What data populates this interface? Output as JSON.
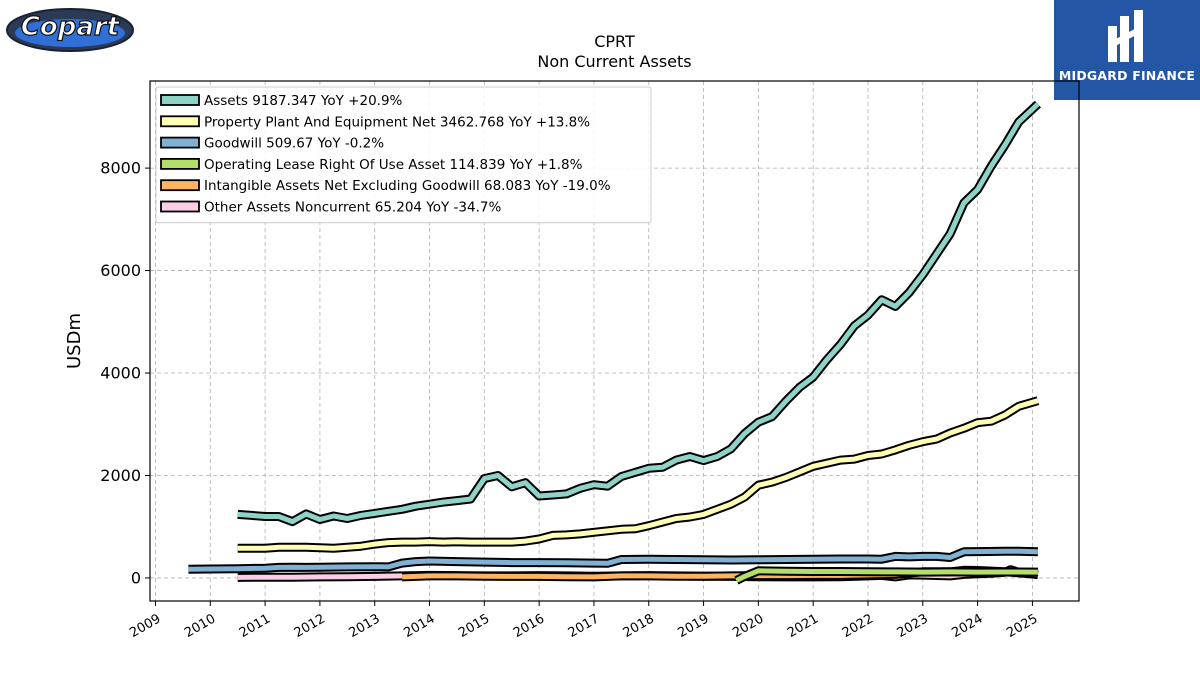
{
  "brand_left": {
    "text": "Copart"
  },
  "brand_right": {
    "text": "MIDGARD FINANCE"
  },
  "chart_data": {
    "type": "line",
    "title": "CPRT",
    "subtitle": "Non Current  Assets",
    "ylabel": "USDm",
    "xlabel": "",
    "xlim": [
      2008.9,
      2025.85
    ],
    "ylim": [
      -450,
      9700
    ],
    "yticks": [
      0,
      2000,
      4000,
      6000,
      8000
    ],
    "xticks": [
      2009,
      2010,
      2011,
      2012,
      2013,
      2014,
      2015,
      2016,
      2017,
      2018,
      2019,
      2020,
      2021,
      2022,
      2023,
      2024,
      2025
    ],
    "grid": true,
    "legend_position": "top-left",
    "series": [
      {
        "name": "Assets",
        "legend": "Assets  9187.347 YoY +20.9%",
        "color": "#8dd3c7",
        "points": [
          [
            2010.5,
            1240
          ],
          [
            2010.75,
            1220
          ],
          [
            2011.0,
            1200
          ],
          [
            2011.25,
            1200
          ],
          [
            2011.5,
            1100
          ],
          [
            2011.75,
            1250
          ],
          [
            2012.0,
            1140
          ],
          [
            2012.25,
            1210
          ],
          [
            2012.5,
            1160
          ],
          [
            2012.75,
            1220
          ],
          [
            2013.0,
            1260
          ],
          [
            2013.25,
            1300
          ],
          [
            2013.5,
            1340
          ],
          [
            2013.75,
            1400
          ],
          [
            2014.0,
            1440
          ],
          [
            2014.25,
            1480
          ],
          [
            2014.5,
            1510
          ],
          [
            2014.75,
            1540
          ],
          [
            2015.0,
            1940
          ],
          [
            2015.25,
            2000
          ],
          [
            2015.5,
            1780
          ],
          [
            2015.75,
            1860
          ],
          [
            2016.0,
            1600
          ],
          [
            2016.25,
            1620
          ],
          [
            2016.5,
            1640
          ],
          [
            2016.75,
            1750
          ],
          [
            2017.0,
            1820
          ],
          [
            2017.25,
            1790
          ],
          [
            2017.5,
            1980
          ],
          [
            2017.75,
            2060
          ],
          [
            2018.0,
            2140
          ],
          [
            2018.25,
            2160
          ],
          [
            2018.5,
            2300
          ],
          [
            2018.75,
            2370
          ],
          [
            2019.0,
            2290
          ],
          [
            2019.25,
            2370
          ],
          [
            2019.5,
            2520
          ],
          [
            2019.75,
            2820
          ],
          [
            2020.0,
            3040
          ],
          [
            2020.25,
            3150
          ],
          [
            2020.5,
            3450
          ],
          [
            2020.75,
            3720
          ],
          [
            2021.0,
            3920
          ],
          [
            2021.25,
            4260
          ],
          [
            2021.5,
            4560
          ],
          [
            2021.75,
            4920
          ],
          [
            2022.0,
            5130
          ],
          [
            2022.25,
            5430
          ],
          [
            2022.5,
            5300
          ],
          [
            2022.75,
            5570
          ],
          [
            2023.0,
            5920
          ],
          [
            2023.25,
            6320
          ],
          [
            2023.5,
            6720
          ],
          [
            2023.75,
            7320
          ],
          [
            2024.0,
            7580
          ],
          [
            2024.25,
            8040
          ],
          [
            2024.5,
            8450
          ],
          [
            2024.75,
            8900
          ],
          [
            2025.1,
            9250
          ]
        ]
      },
      {
        "name": "Property Plant And Equipment Net",
        "legend": "Property Plant And Equipment Net  3462.768 YoY +13.8%",
        "color": "#ffffb3",
        "points": [
          [
            2010.5,
            580
          ],
          [
            2010.75,
            580
          ],
          [
            2011.0,
            580
          ],
          [
            2011.25,
            600
          ],
          [
            2011.5,
            600
          ],
          [
            2011.75,
            600
          ],
          [
            2012.0,
            590
          ],
          [
            2012.25,
            580
          ],
          [
            2012.5,
            600
          ],
          [
            2012.75,
            620
          ],
          [
            2013.0,
            660
          ],
          [
            2013.25,
            690
          ],
          [
            2013.5,
            700
          ],
          [
            2013.75,
            700
          ],
          [
            2014.0,
            710
          ],
          [
            2014.25,
            700
          ],
          [
            2014.5,
            705
          ],
          [
            2014.75,
            700
          ],
          [
            2015.0,
            700
          ],
          [
            2015.25,
            700
          ],
          [
            2015.5,
            700
          ],
          [
            2015.75,
            720
          ],
          [
            2016.0,
            760
          ],
          [
            2016.25,
            830
          ],
          [
            2016.5,
            840
          ],
          [
            2016.75,
            860
          ],
          [
            2017.0,
            890
          ],
          [
            2017.25,
            920
          ],
          [
            2017.5,
            950
          ],
          [
            2017.75,
            960
          ],
          [
            2018.0,
            1020
          ],
          [
            2018.25,
            1090
          ],
          [
            2018.5,
            1160
          ],
          [
            2018.75,
            1190
          ],
          [
            2019.0,
            1240
          ],
          [
            2019.25,
            1340
          ],
          [
            2019.5,
            1440
          ],
          [
            2019.75,
            1580
          ],
          [
            2020.0,
            1810
          ],
          [
            2020.25,
            1870
          ],
          [
            2020.5,
            1960
          ],
          [
            2020.75,
            2070
          ],
          [
            2021.0,
            2180
          ],
          [
            2021.25,
            2240
          ],
          [
            2021.5,
            2300
          ],
          [
            2021.75,
            2320
          ],
          [
            2022.0,
            2390
          ],
          [
            2022.25,
            2420
          ],
          [
            2022.5,
            2500
          ],
          [
            2022.75,
            2590
          ],
          [
            2023.0,
            2660
          ],
          [
            2023.25,
            2710
          ],
          [
            2023.5,
            2830
          ],
          [
            2023.75,
            2920
          ],
          [
            2024.0,
            3030
          ],
          [
            2024.25,
            3060
          ],
          [
            2024.5,
            3180
          ],
          [
            2024.75,
            3350
          ],
          [
            2025.1,
            3460
          ]
        ]
      },
      {
        "name": "Goodwill",
        "legend": "Goodwill  509.67 YoY -0.2%",
        "color": "#80b1d3",
        "points": [
          [
            2009.6,
            170
          ],
          [
            2010.0,
            175
          ],
          [
            2010.5,
            180
          ],
          [
            2011.0,
            190
          ],
          [
            2011.25,
            205
          ],
          [
            2011.5,
            210
          ],
          [
            2011.75,
            205
          ],
          [
            2012.0,
            210
          ],
          [
            2012.5,
            215
          ],
          [
            2013.0,
            220
          ],
          [
            2013.25,
            215
          ],
          [
            2013.5,
            290
          ],
          [
            2013.75,
            320
          ],
          [
            2014.0,
            330
          ],
          [
            2014.5,
            320
          ],
          [
            2015.0,
            310
          ],
          [
            2015.5,
            300
          ],
          [
            2016.0,
            300
          ],
          [
            2016.5,
            295
          ],
          [
            2017.0,
            290
          ],
          [
            2017.25,
            285
          ],
          [
            2017.5,
            360
          ],
          [
            2018.0,
            365
          ],
          [
            2018.5,
            360
          ],
          [
            2019.0,
            355
          ],
          [
            2019.5,
            350
          ],
          [
            2020.0,
            355
          ],
          [
            2020.5,
            360
          ],
          [
            2021.0,
            365
          ],
          [
            2021.5,
            370
          ],
          [
            2022.0,
            370
          ],
          [
            2022.25,
            365
          ],
          [
            2022.5,
            420
          ],
          [
            2022.75,
            410
          ],
          [
            2023.0,
            420
          ],
          [
            2023.25,
            420
          ],
          [
            2023.5,
            400
          ],
          [
            2023.75,
            510
          ],
          [
            2024.0,
            515
          ],
          [
            2024.5,
            520
          ],
          [
            2024.75,
            520
          ],
          [
            2025.1,
            510
          ]
        ]
      },
      {
        "name": "Operating Lease Right Of Use Asset",
        "legend": "Operating Lease Right Of Use Asset  114.839 YoY +1.8%",
        "color": "#b3de69",
        "points": [
          [
            2019.6,
            -50
          ],
          [
            2019.75,
            30
          ],
          [
            2020.0,
            140
          ],
          [
            2020.5,
            130
          ],
          [
            2021.0,
            125
          ],
          [
            2021.5,
            125
          ],
          [
            2022.0,
            120
          ],
          [
            2022.5,
            118
          ],
          [
            2023.0,
            115
          ],
          [
            2023.5,
            118
          ],
          [
            2024.0,
            115
          ],
          [
            2024.5,
            116
          ],
          [
            2025.1,
            115
          ]
        ]
      },
      {
        "name": "Intangible Assets Net Excluding Goodwill",
        "legend": "Intangible Assets Net Excluding Goodwill  68.083 YoY -19.0%",
        "color": "#fdb462",
        "points": [
          [
            2013.5,
            20
          ],
          [
            2014.0,
            40
          ],
          [
            2014.5,
            40
          ],
          [
            2015.0,
            35
          ],
          [
            2015.5,
            30
          ],
          [
            2016.0,
            30
          ],
          [
            2016.5,
            25
          ],
          [
            2017.0,
            20
          ],
          [
            2017.5,
            40
          ],
          [
            2018.0,
            40
          ],
          [
            2018.5,
            35
          ],
          [
            2019.0,
            35
          ],
          [
            2019.5,
            40
          ],
          [
            2020.0,
            45
          ],
          [
            2020.5,
            45
          ],
          [
            2021.0,
            50
          ],
          [
            2021.5,
            50
          ],
          [
            2022.0,
            60
          ],
          [
            2022.5,
            70
          ],
          [
            2023.0,
            120
          ],
          [
            2023.5,
            120
          ],
          [
            2023.75,
            150
          ],
          [
            2024.0,
            145
          ],
          [
            2024.5,
            120
          ],
          [
            2025.1,
            70
          ]
        ]
      },
      {
        "name": "Other Assets Noncurrent",
        "legend": "Other Assets Noncurrent  65.204 YoY -34.7%",
        "color": "#fccde5",
        "points": [
          [
            2010.5,
            10
          ],
          [
            2011.0,
            15
          ],
          [
            2011.5,
            15
          ],
          [
            2012.0,
            20
          ],
          [
            2012.5,
            25
          ],
          [
            2013.0,
            30
          ],
          [
            2013.5,
            40
          ],
          [
            2014.0,
            50
          ],
          [
            2014.5,
            45
          ],
          [
            2015.0,
            40
          ],
          [
            2015.5,
            40
          ],
          [
            2016.0,
            45
          ],
          [
            2016.5,
            40
          ],
          [
            2017.0,
            35
          ],
          [
            2017.5,
            40
          ],
          [
            2018.0,
            45
          ],
          [
            2018.5,
            40
          ],
          [
            2019.0,
            35
          ],
          [
            2019.5,
            30
          ],
          [
            2020.0,
            25
          ],
          [
            2020.5,
            20
          ],
          [
            2021.0,
            20
          ],
          [
            2021.5,
            25
          ],
          [
            2022.0,
            40
          ],
          [
            2022.25,
            50
          ],
          [
            2022.5,
            20
          ],
          [
            2022.75,
            60
          ],
          [
            2023.0,
            55
          ],
          [
            2023.5,
            40
          ],
          [
            2023.75,
            70
          ],
          [
            2024.0,
            80
          ],
          [
            2024.25,
            90
          ],
          [
            2024.5,
            110
          ],
          [
            2024.6,
            160
          ],
          [
            2024.75,
            110
          ],
          [
            2025.1,
            65
          ]
        ]
      }
    ]
  }
}
